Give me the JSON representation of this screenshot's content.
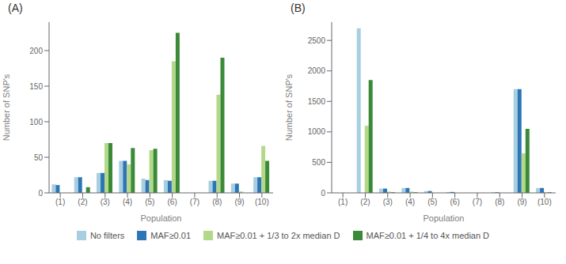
{
  "chart_data": [
    {
      "type": "bar",
      "title": "(A)",
      "x_label": "Population",
      "y_label": "Number of SNP's",
      "categories": [
        "(1)",
        "(2)",
        "(3)",
        "(4)",
        "(5)",
        "(6)",
        "(7)",
        "(8)",
        "(9)",
        "(10)"
      ],
      "series": [
        {
          "name": "No filters",
          "color": "#a8cfe0",
          "values": [
            12,
            22,
            28,
            45,
            20,
            18,
            0,
            17,
            13,
            22
          ]
        },
        {
          "name": "MAF≥0.01",
          "color": "#2e75b6",
          "values": [
            11,
            22,
            28,
            45,
            18,
            17,
            0,
            17,
            13,
            22
          ]
        },
        {
          "name": "MAF≥0.01 + 1/3 to 2x median D",
          "color": "#b4d88a",
          "values": [
            0,
            0,
            70,
            40,
            60,
            185,
            0,
            138,
            2,
            66
          ]
        },
        {
          "name": "MAF≥0.01 + 1/4 to 4x median D",
          "color": "#3a8a38",
          "values": [
            0,
            8,
            70,
            63,
            62,
            225,
            0,
            190,
            0,
            45
          ]
        }
      ],
      "ylim": [
        0,
        240
      ],
      "yticks": [
        0,
        50,
        100,
        150,
        200
      ],
      "grid": false
    },
    {
      "type": "bar",
      "title": "(B)",
      "x_label": "Population",
      "y_label": "Number of SNP's",
      "categories": [
        "(1)",
        "(2)",
        "(3)",
        "(4)",
        "(5)",
        "(6)",
        "(7)",
        "(8)",
        "(9)",
        "(10)"
      ],
      "series": [
        {
          "name": "No filters",
          "color": "#a8cfe0",
          "values": [
            0,
            2700,
            70,
            80,
            30,
            15,
            0,
            10,
            1700,
            80
          ]
        },
        {
          "name": "MAF≥0.01",
          "color": "#2e75b6",
          "values": [
            0,
            0,
            70,
            80,
            30,
            15,
            0,
            10,
            1700,
            80
          ]
        },
        {
          "name": "MAF≥0.01 + 1/3 to 2x median D",
          "color": "#b4d88a",
          "values": [
            0,
            1100,
            20,
            20,
            0,
            0,
            0,
            0,
            650,
            10
          ]
        },
        {
          "name": "MAF≥0.01 + 1/4 to 4x median D",
          "color": "#3a8a38",
          "values": [
            0,
            1850,
            10,
            10,
            0,
            0,
            0,
            0,
            1050,
            10
          ]
        }
      ],
      "ylim": [
        0,
        2800
      ],
      "yticks": [
        0,
        500,
        1000,
        1500,
        2000,
        2500
      ],
      "grid": false
    }
  ]
}
